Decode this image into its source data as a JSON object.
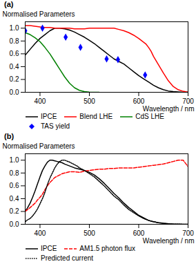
{
  "chart_data": [
    {
      "type": "line",
      "title": "(a)",
      "xlabel": "Wavelength / nm",
      "ylabel": "Normalised Parameters",
      "xlim": [
        370,
        700
      ],
      "ylim": [
        0,
        1.1
      ],
      "xticks": [
        400,
        500,
        600,
        700
      ],
      "yticks": [
        {
          "value": 0,
          "label": "0.0"
        },
        0.2,
        0.4,
        0.6,
        0.8,
        {
          "value": 1,
          "label": "1.0"
        }
      ],
      "grid": false,
      "legend": "bottom",
      "series": [
        {
          "name": "IPCE",
          "color": "#000000",
          "type": "line",
          "line_style": "solid",
          "x": [
            370,
            380,
            390,
            400,
            410,
            420,
            430,
            440,
            450,
            460,
            470,
            480,
            490,
            500,
            510,
            520,
            530,
            540,
            550,
            560,
            570,
            580,
            590,
            600,
            610,
            620,
            630,
            640,
            650,
            660,
            670,
            680,
            690,
            700
          ],
          "values": [
            0.58,
            0.67,
            0.76,
            0.84,
            0.9,
            0.96,
            1.0,
            1.0,
            0.99,
            0.97,
            0.94,
            0.9,
            0.86,
            0.81,
            0.76,
            0.7,
            0.64,
            0.58,
            0.52,
            0.48,
            0.44,
            0.38,
            0.32,
            0.26,
            0.21,
            0.16,
            0.11,
            0.07,
            0.04,
            0.02,
            0.01,
            0.005,
            0.001,
            0.0
          ]
        },
        {
          "name": "Blend LHE",
          "color": "#ff0000",
          "type": "line",
          "line_style": "solid",
          "x": [
            370,
            380,
            390,
            400,
            410,
            420,
            430,
            440,
            450,
            460,
            470,
            480,
            490,
            500,
            510,
            520,
            530,
            540,
            550,
            560,
            570,
            580,
            590,
            600,
            610,
            615,
            620,
            625,
            630,
            640,
            650,
            660,
            670,
            680,
            690,
            700
          ],
          "values": [
            1.04,
            1.04,
            1.03,
            1.02,
            1.01,
            1.01,
            1.0,
            1.0,
            1.0,
            1.0,
            0.99,
            0.99,
            0.99,
            1.0,
            1.0,
            1.0,
            1.0,
            1.0,
            1.0,
            0.98,
            0.96,
            0.93,
            0.89,
            0.84,
            0.78,
            0.75,
            0.7,
            0.64,
            0.56,
            0.43,
            0.3,
            0.18,
            0.09,
            0.04,
            0.015,
            0.003
          ]
        },
        {
          "name": "CdS LHE",
          "color": "#008000",
          "type": "line",
          "line_style": "solid",
          "x": [
            370,
            380,
            390,
            400,
            410,
            420,
            430,
            440,
            450,
            460,
            470,
            480,
            490,
            500,
            510,
            520
          ],
          "values": [
            0.93,
            0.9,
            0.85,
            0.79,
            0.7,
            0.6,
            0.48,
            0.36,
            0.24,
            0.14,
            0.07,
            0.03,
            0.01,
            0.003,
            0.001,
            0.0
          ]
        },
        {
          "name": "TAS yield",
          "color": "#0000ff",
          "type": "scatter",
          "marker": "diamond",
          "x": [
            370,
            405,
            452,
            482,
            535,
            558,
            613
          ],
          "values": [
            0.96,
            1.0,
            0.86,
            0.7,
            0.52,
            0.51,
            0.27
          ]
        }
      ]
    },
    {
      "type": "line",
      "title": "(b)",
      "xlabel": "Wavelength / nm",
      "ylabel": "Normalised Parameters",
      "xlim": [
        370,
        700
      ],
      "ylim": [
        0,
        1.1
      ],
      "xticks": [
        400,
        500,
        600,
        700
      ],
      "yticks": [
        {
          "value": 0,
          "label": "0.0"
        },
        0.2,
        0.4,
        0.6,
        0.8,
        {
          "value": 1,
          "label": "1.0"
        }
      ],
      "grid": false,
      "legend": "bottom",
      "series": [
        {
          "name": "IPCE",
          "color": "#000000",
          "type": "line",
          "line_style": "solid",
          "x": [
            370,
            375,
            380,
            385,
            390,
            395,
            400,
            405,
            410,
            415,
            420,
            425,
            430,
            435,
            440,
            445,
            450,
            460,
            470,
            480,
            490,
            500,
            510,
            520,
            530,
            540,
            550,
            560,
            570,
            580,
            590,
            600,
            610,
            620,
            630,
            640,
            650,
            660,
            670,
            680,
            690,
            700
          ],
          "values": [
            0.2,
            0.26,
            0.33,
            0.42,
            0.52,
            0.63,
            0.74,
            0.84,
            0.91,
            0.97,
            1.0,
            1.0,
            0.99,
            0.98,
            0.97,
            0.96,
            0.94,
            0.91,
            0.88,
            0.86,
            0.84,
            0.81,
            0.77,
            0.71,
            0.64,
            0.56,
            0.48,
            0.41,
            0.33,
            0.26,
            0.2,
            0.14,
            0.1,
            0.06,
            0.04,
            0.025,
            0.015,
            0.008,
            0.004,
            0.002,
            0.001,
            0.0
          ]
        },
        {
          "name": "AM1.5 photon flux",
          "color": "#ff0000",
          "type": "line",
          "line_style": "dashed",
          "x": [
            370,
            380,
            390,
            395,
            400,
            405,
            410,
            415,
            420,
            425,
            430,
            440,
            445,
            450,
            460,
            470,
            480,
            490,
            500,
            510,
            520,
            530,
            540,
            550,
            560,
            570,
            580,
            590,
            600,
            610,
            620,
            630,
            640,
            650,
            660,
            670,
            680,
            690,
            700
          ],
          "values": [
            0.2,
            0.26,
            0.33,
            0.38,
            0.42,
            0.47,
            0.54,
            0.6,
            0.65,
            0.69,
            0.73,
            0.77,
            0.79,
            0.8,
            0.82,
            0.82,
            0.81,
            0.83,
            0.84,
            0.85,
            0.86,
            0.86,
            0.87,
            0.87,
            0.88,
            0.88,
            0.88,
            0.88,
            0.89,
            0.9,
            0.91,
            0.92,
            0.93,
            0.94,
            0.96,
            0.98,
            1.0,
            1.0,
            0.9
          ]
        },
        {
          "name": "Predicted current",
          "color": "#000000",
          "type": "line",
          "line_style": "dotted",
          "x": [
            370,
            375,
            380,
            385,
            390,
            395,
            400,
            405,
            410,
            415,
            420,
            425,
            430,
            435,
            440,
            445,
            450,
            460,
            470,
            475,
            480,
            490,
            500,
            510,
            520,
            530,
            540,
            550,
            560,
            570,
            580,
            590,
            600,
            610,
            620,
            630,
            640,
            650,
            660,
            670,
            680,
            690,
            700
          ],
          "values": [
            0.04,
            0.07,
            0.09,
            0.13,
            0.18,
            0.24,
            0.32,
            0.4,
            0.5,
            0.62,
            0.72,
            0.8,
            0.88,
            0.94,
            0.98,
            1.0,
            1.0,
            0.97,
            0.93,
            0.91,
            0.88,
            0.84,
            0.79,
            0.74,
            0.67,
            0.6,
            0.52,
            0.44,
            0.38,
            0.3,
            0.23,
            0.18,
            0.13,
            0.09,
            0.06,
            0.04,
            0.025,
            0.015,
            0.008,
            0.004,
            0.002,
            0.001,
            0.0
          ]
        }
      ]
    }
  ]
}
